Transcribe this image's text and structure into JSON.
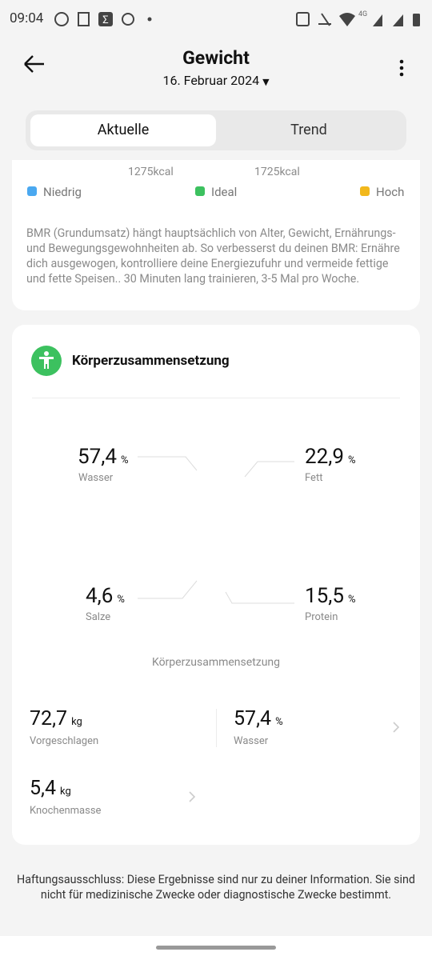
{
  "status_bar": {
    "time": "09:04",
    "network": "4G"
  },
  "header": {
    "title": "Gewicht",
    "date": "16. Februar 2024"
  },
  "tabs": [
    "Aktuelle",
    "Trend"
  ],
  "bmr": {
    "scale_labels": [
      "1275kcal",
      "1725kcal"
    ],
    "legend": [
      "Niedrig",
      "Ideal",
      "Hoch"
    ],
    "text": "BMR (Grundumsatz) hängt hauptsächlich von Alter, Gewicht, Ernährungs- und Bewegungsgewohnheiten ab. So verbesserst du deinen BMR: Ernähre dich ausgewogen, kontrolliere deine Energiezufuhr und vermeide fettige und fette Speisen.. 30 Minuten lang trainieren, 3-5 Mal pro Woche."
  },
  "composition": {
    "title": "Körperzusammensetzung",
    "metrics": [
      {
        "value": "57,4",
        "unit": "%",
        "label": "Wasser"
      },
      {
        "value": "22,9",
        "unit": "%",
        "label": "Fett"
      },
      {
        "value": "4,6",
        "unit": "%",
        "label": "Salze"
      },
      {
        "value": "15,5",
        "unit": "%",
        "label": "Protein"
      }
    ],
    "caption": "Körperzusammensetzung"
  },
  "details": [
    {
      "value": "72,7",
      "unit": "kg",
      "label": "Vorgeschlagen"
    },
    {
      "value": "57,4",
      "unit": "%",
      "label": "Wasser"
    },
    {
      "value": "5,4",
      "unit": "kg",
      "label": "Knochenmasse"
    }
  ],
  "disclaimer": "Haftungsausschluss: Diese Ergebnisse sind nur zu deiner Information. Sie sind nicht für medizinische Zwecke oder diagnostische Zwecke bestimmt."
}
